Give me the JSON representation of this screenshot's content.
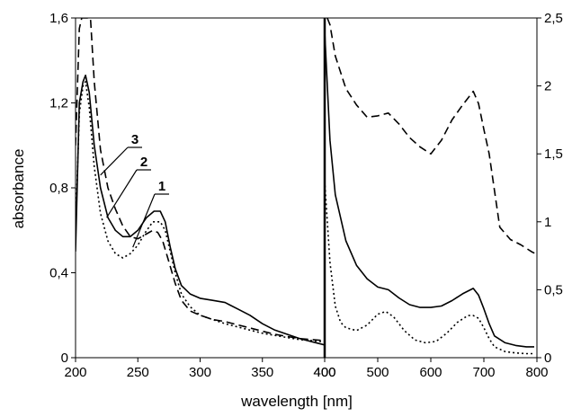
{
  "chart_data": {
    "type": "line",
    "xlabel": "wavelength [nm]",
    "ylabel": "absorbance",
    "annotations": [
      "1",
      "2",
      "3"
    ],
    "panels": [
      {
        "name": "left",
        "xlim": [
          200,
          400
        ],
        "ylim": [
          0,
          1.6
        ],
        "x_ticks": [
          200,
          250,
          300,
          350,
          400
        ],
        "y_ticks": [
          "0",
          "0,4",
          "0,8",
          "1,2",
          "1,6"
        ],
        "y_tick_values": [
          0,
          0.4,
          0.8,
          1.2,
          1.6
        ],
        "series": [
          {
            "id": "1",
            "style": "solid",
            "points": [
              [
                200,
                0.5
              ],
              [
                203,
                1.2
              ],
              [
                206,
                1.3
              ],
              [
                208,
                1.33
              ],
              [
                211,
                1.25
              ],
              [
                215,
                1.0
              ],
              [
                220,
                0.8
              ],
              [
                226,
                0.66
              ],
              [
                232,
                0.6
              ],
              [
                238,
                0.57
              ],
              [
                244,
                0.57
              ],
              [
                250,
                0.6
              ],
              [
                257,
                0.66
              ],
              [
                263,
                0.69
              ],
              [
                268,
                0.69
              ],
              [
                272,
                0.64
              ],
              [
                276,
                0.52
              ],
              [
                280,
                0.42
              ],
              [
                285,
                0.34
              ],
              [
                292,
                0.3
              ],
              [
                300,
                0.28
              ],
              [
                310,
                0.27
              ],
              [
                320,
                0.26
              ],
              [
                330,
                0.23
              ],
              [
                340,
                0.2
              ],
              [
                350,
                0.16
              ],
              [
                360,
                0.13
              ],
              [
                370,
                0.11
              ],
              [
                380,
                0.09
              ],
              [
                390,
                0.075
              ],
              [
                400,
                0.06
              ]
            ]
          },
          {
            "id": "2",
            "style": "dotted",
            "points": [
              [
                200,
                0.6
              ],
              [
                203,
                1.15
              ],
              [
                206,
                1.28
              ],
              [
                208,
                1.3
              ],
              [
                211,
                1.18
              ],
              [
                215,
                0.9
              ],
              [
                220,
                0.68
              ],
              [
                226,
                0.55
              ],
              [
                232,
                0.49
              ],
              [
                238,
                0.47
              ],
              [
                244,
                0.49
              ],
              [
                250,
                0.53
              ],
              [
                256,
                0.59
              ],
              [
                262,
                0.64
              ],
              [
                268,
                0.64
              ],
              [
                272,
                0.6
              ],
              [
                276,
                0.5
              ],
              [
                280,
                0.4
              ],
              [
                285,
                0.3
              ],
              [
                292,
                0.24
              ],
              [
                300,
                0.2
              ],
              [
                310,
                0.18
              ],
              [
                320,
                0.16
              ],
              [
                330,
                0.145
              ],
              [
                340,
                0.13
              ],
              [
                350,
                0.115
              ],
              [
                360,
                0.105
              ],
              [
                370,
                0.095
              ],
              [
                380,
                0.085
              ],
              [
                390,
                0.08
              ],
              [
                400,
                0.075
              ]
            ]
          },
          {
            "id": "3",
            "style": "dashed",
            "points": [
              [
                200,
                1.0
              ],
              [
                203,
                1.55
              ],
              [
                205,
                1.6
              ],
              [
                212,
                1.6
              ],
              [
                215,
                1.3
              ],
              [
                220,
                0.98
              ],
              [
                226,
                0.8
              ],
              [
                232,
                0.7
              ],
              [
                238,
                0.62
              ],
              [
                244,
                0.57
              ],
              [
                250,
                0.56
              ],
              [
                256,
                0.58
              ],
              [
                262,
                0.6
              ],
              [
                266,
                0.59
              ],
              [
                270,
                0.55
              ],
              [
                275,
                0.45
              ],
              [
                280,
                0.35
              ],
              [
                285,
                0.27
              ],
              [
                292,
                0.22
              ],
              [
                300,
                0.2
              ],
              [
                310,
                0.18
              ],
              [
                320,
                0.17
              ],
              [
                330,
                0.155
              ],
              [
                340,
                0.14
              ],
              [
                350,
                0.125
              ],
              [
                360,
                0.11
              ],
              [
                370,
                0.1
              ],
              [
                380,
                0.09
              ],
              [
                390,
                0.085
              ],
              [
                400,
                0.08
              ]
            ]
          }
        ]
      },
      {
        "name": "right",
        "xlim": [
          400,
          800
        ],
        "ylim": [
          0,
          2.5
        ],
        "x_ticks": [
          400,
          500,
          600,
          700,
          800
        ],
        "y_ticks": [
          "0",
          "0,5",
          "1",
          "1,5",
          "2",
          "2,5"
        ],
        "y_tick_values": [
          0,
          0.5,
          1,
          1.5,
          2,
          2.5
        ],
        "y_axis_side": "right",
        "series": [
          {
            "id": "1",
            "style": "solid",
            "points": [
              [
                400,
                2.4
              ],
              [
                410,
                1.6
              ],
              [
                420,
                1.2
              ],
              [
                440,
                0.86
              ],
              [
                460,
                0.68
              ],
              [
                480,
                0.58
              ],
              [
                500,
                0.52
              ],
              [
                520,
                0.5
              ],
              [
                540,
                0.44
              ],
              [
                560,
                0.39
              ],
              [
                580,
                0.37
              ],
              [
                600,
                0.37
              ],
              [
                620,
                0.38
              ],
              [
                640,
                0.42
              ],
              [
                660,
                0.47
              ],
              [
                680,
                0.51
              ],
              [
                690,
                0.46
              ],
              [
                700,
                0.36
              ],
              [
                710,
                0.25
              ],
              [
                720,
                0.16
              ],
              [
                740,
                0.11
              ],
              [
                760,
                0.09
              ],
              [
                780,
                0.08
              ],
              [
                795,
                0.08
              ]
            ]
          },
          {
            "id": "2",
            "style": "dotted",
            "points": [
              [
                400,
                1.3
              ],
              [
                410,
                0.7
              ],
              [
                420,
                0.38
              ],
              [
                430,
                0.26
              ],
              [
                440,
                0.22
              ],
              [
                460,
                0.2
              ],
              [
                480,
                0.24
              ],
              [
                500,
                0.32
              ],
              [
                515,
                0.34
              ],
              [
                530,
                0.3
              ],
              [
                550,
                0.2
              ],
              [
                570,
                0.13
              ],
              [
                590,
                0.11
              ],
              [
                610,
                0.12
              ],
              [
                630,
                0.18
              ],
              [
                650,
                0.26
              ],
              [
                670,
                0.31
              ],
              [
                680,
                0.31
              ],
              [
                690,
                0.29
              ],
              [
                700,
                0.22
              ],
              [
                710,
                0.14
              ],
              [
                720,
                0.08
              ],
              [
                740,
                0.045
              ],
              [
                760,
                0.035
              ],
              [
                780,
                0.03
              ],
              [
                795,
                0.03
              ]
            ]
          },
          {
            "id": "3",
            "style": "dashed",
            "points": [
              [
                405,
                2.5
              ],
              [
                410,
                2.45
              ],
              [
                420,
                2.22
              ],
              [
                440,
                1.98
              ],
              [
                460,
                1.86
              ],
              [
                480,
                1.77
              ],
              [
                500,
                1.78
              ],
              [
                520,
                1.8
              ],
              [
                540,
                1.72
              ],
              [
                560,
                1.62
              ],
              [
                580,
                1.55
              ],
              [
                600,
                1.5
              ],
              [
                620,
                1.6
              ],
              [
                640,
                1.75
              ],
              [
                660,
                1.86
              ],
              [
                680,
                1.96
              ],
              [
                690,
                1.87
              ],
              [
                700,
                1.68
              ],
              [
                710,
                1.5
              ],
              [
                720,
                1.23
              ],
              [
                730,
                0.96
              ],
              [
                750,
                0.87
              ],
              [
                770,
                0.83
              ],
              [
                790,
                0.78
              ],
              [
                800,
                0.76
              ]
            ]
          }
        ]
      }
    ]
  }
}
